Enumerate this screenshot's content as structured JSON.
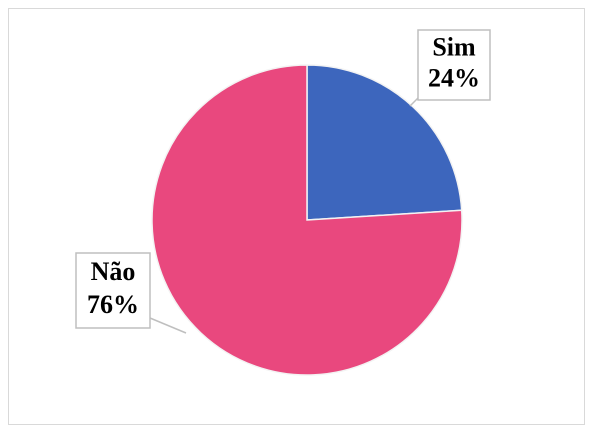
{
  "chart_data": {
    "type": "pie",
    "categories": [
      "Sim",
      "Não"
    ],
    "values": [
      24,
      76
    ],
    "value_labels": [
      "24%",
      "76%"
    ],
    "colors": [
      "#3d66bd",
      "#e9487e"
    ]
  }
}
